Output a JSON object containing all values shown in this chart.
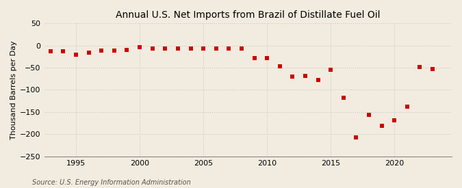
{
  "title": "Annual U.S. Net Imports from Brazil of Distillate Fuel Oil",
  "ylabel": "Thousand Barrels per Day",
  "source": "Source: U.S. Energy Information Administration",
  "background_color": "#f2ece0",
  "plot_background_color": "#f2ece0",
  "marker_color": "#cc0000",
  "grid_color": "#c8c8c8",
  "axis_color": "#888888",
  "years": [
    1993,
    1994,
    1995,
    1996,
    1997,
    1998,
    1999,
    2000,
    2001,
    2002,
    2003,
    2004,
    2005,
    2006,
    2007,
    2008,
    2009,
    2010,
    2011,
    2012,
    2013,
    2014,
    2015,
    2016,
    2017,
    2018,
    2019,
    2020,
    2021,
    2022,
    2023
  ],
  "values": [
    -13,
    -13,
    -20,
    -16,
    -12,
    -11,
    -9,
    -4,
    -7,
    -7,
    -7,
    -6,
    -7,
    -7,
    -6,
    -6,
    -28,
    -28,
    -47,
    -70,
    -68,
    -78,
    -55,
    -118,
    -208,
    -156,
    -181,
    -168,
    -138,
    -48,
    -53
  ],
  "ylim": [
    -250,
    50
  ],
  "yticks": [
    50,
    0,
    -50,
    -100,
    -150,
    -200,
    -250
  ],
  "xlim": [
    1992.5,
    2024.5
  ],
  "xticks": [
    1995,
    2000,
    2005,
    2010,
    2015,
    2020
  ],
  "title_fontsize": 10,
  "label_fontsize": 8,
  "tick_fontsize": 8,
  "source_fontsize": 7,
  "marker_size": 4.5
}
